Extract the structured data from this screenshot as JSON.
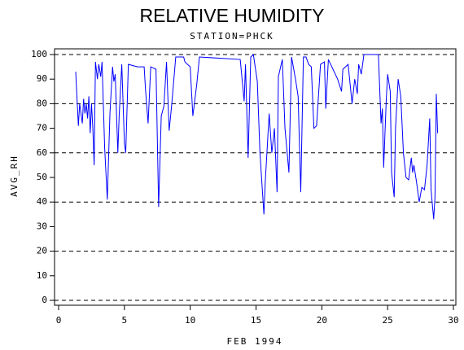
{
  "chart_data": {
    "type": "line",
    "title": "RELATIVE HUMIDITY",
    "subtitle": "STATION=PHCK",
    "x_label": "FEB 1994",
    "y_label": "AVG_RH",
    "xlim": [
      0,
      30
    ],
    "xticks": [
      0,
      5,
      10,
      15,
      20,
      25,
      30
    ],
    "ylim": [
      0,
      100
    ],
    "yticks": [
      0,
      10,
      20,
      30,
      40,
      50,
      60,
      70,
      80,
      90,
      100
    ],
    "grid_y": [
      0,
      20,
      40,
      60,
      80,
      100
    ],
    "series": [
      {
        "name": "AVG_RH",
        "color": "#0000ff",
        "x": [
          1.3,
          1.5,
          1.6,
          1.8,
          1.9,
          2.0,
          2.1,
          2.2,
          2.3,
          2.4,
          2.5,
          2.6,
          2.7,
          2.8,
          2.95,
          3.05,
          3.2,
          3.3,
          3.5,
          3.7,
          3.9,
          4.1,
          4.2,
          4.3,
          4.5,
          4.6,
          4.8,
          5.0,
          5.1,
          5.3,
          6.0,
          6.5,
          6.6,
          6.8,
          7.0,
          7.4,
          7.6,
          7.8,
          8.0,
          8.2,
          8.4,
          8.6,
          8.9,
          9.5,
          9.6,
          10.0,
          10.2,
          10.5,
          10.7,
          13.8,
          14.1,
          14.2,
          14.4,
          14.6,
          14.8,
          15.1,
          15.3,
          15.6,
          15.7,
          16.0,
          16.2,
          16.4,
          16.6,
          16.7,
          17.0,
          17.2,
          17.5,
          17.7,
          18.0,
          18.2,
          18.4,
          18.6,
          18.8,
          19.0,
          19.2,
          19.4,
          19.6,
          19.9,
          20.2,
          20.3,
          20.5,
          21.2,
          21.5,
          21.6,
          22.0,
          22.3,
          22.5,
          22.7,
          22.8,
          23.0,
          23.2,
          24.3,
          24.5,
          24.6,
          24.7,
          24.9,
          25.0,
          25.2,
          25.3,
          25.5,
          25.6,
          25.8,
          26.0,
          26.2,
          26.4,
          26.6,
          26.8,
          26.9,
          27.0,
          27.2,
          27.4,
          27.6,
          27.8,
          28.0,
          28.2,
          28.3,
          28.5,
          28.6,
          28.7,
          28.8
        ],
        "values": [
          93,
          71,
          80,
          72,
          82,
          76,
          80,
          74,
          83,
          68,
          80,
          70,
          55,
          97,
          90,
          96,
          91,
          97,
          62,
          41,
          76,
          95,
          89,
          92,
          60,
          75,
          96,
          64,
          60,
          96,
          95,
          95,
          86,
          72,
          95,
          94,
          38,
          75,
          79,
          97,
          69,
          80,
          99,
          99,
          97,
          95,
          75,
          88,
          99,
          98,
          81,
          96,
          58,
          99,
          100,
          89,
          60,
          35,
          48,
          76,
          60,
          70,
          44,
          91,
          98,
          70,
          52,
          99,
          90,
          83,
          44,
          99,
          99,
          96,
          95,
          70,
          71,
          96,
          97,
          78,
          98,
          90,
          85,
          94,
          96,
          80,
          90,
          84,
          96,
          92,
          100,
          100,
          72,
          78,
          54,
          82,
          92,
          85,
          52,
          42,
          70,
          90,
          83,
          60,
          50,
          49,
          58,
          52,
          55,
          48,
          40,
          46,
          45,
          55,
          74,
          45,
          33,
          42,
          84,
          68
        ]
      }
    ]
  }
}
